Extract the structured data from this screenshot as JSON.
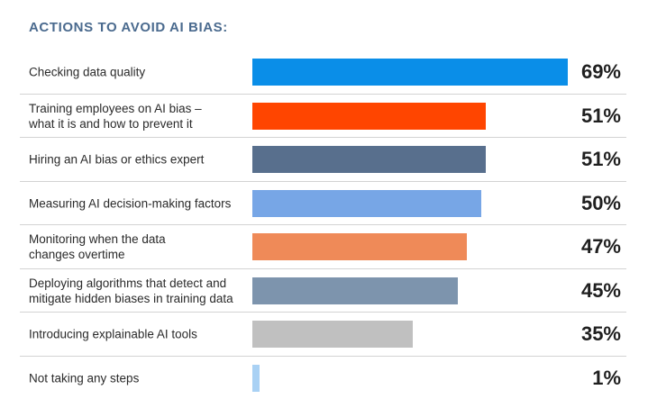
{
  "title": "ACTIONS TO AVOID AI BIAS:",
  "chart_data": {
    "type": "bar",
    "orientation": "horizontal",
    "title": "ACTIONS TO AVOID AI BIAS:",
    "xlim": [
      0,
      69
    ],
    "categories": [
      "Checking data quality",
      "Training employees on AI bias –\nwhat it is and how to prevent it",
      "Hiring an AI bias or ethics expert",
      "Measuring AI decision-making factors",
      "Monitoring when the data\nchanges overtime",
      "Deploying algorithms that detect and\nmitigate hidden biases in training data",
      "Introducing explainable AI tools",
      "Not taking any steps"
    ],
    "values": [
      69,
      51,
      51,
      50,
      47,
      45,
      35,
      1
    ],
    "value_labels": [
      "69%",
      "51%",
      "51%",
      "50%",
      "47%",
      "45%",
      "35%",
      "1%"
    ],
    "colors": [
      "#0a8ee8",
      "#ff4500",
      "#586f8d",
      "#77a6e6",
      "#ef8a58",
      "#7d94ad",
      "#c0c0c0",
      "#a9d1f4"
    ],
    "grid": false,
    "legend": "none"
  }
}
